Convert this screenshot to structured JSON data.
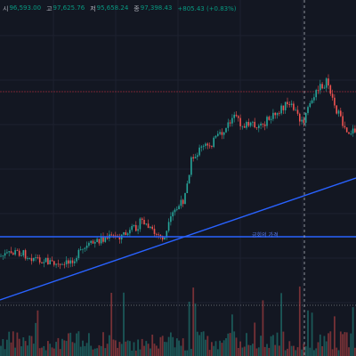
{
  "ohlc": {
    "open_label": "시",
    "open_value": "96,593.00",
    "high_label": "고",
    "high_value": "97,625.76",
    "low_label": "저",
    "low_value": "95,658.24",
    "close_label": "종",
    "close_value": "97,398.43",
    "change": "+805.43 (+0.83%)"
  },
  "annotations": {
    "horizontal_line_label": "금회의 가격"
  },
  "colors": {
    "background": "#131722",
    "up": "#26a69a",
    "down": "#ef5350",
    "drawing_line": "#2962ff",
    "grid": "#1e2230",
    "price_line": "#f23645"
  }
}
